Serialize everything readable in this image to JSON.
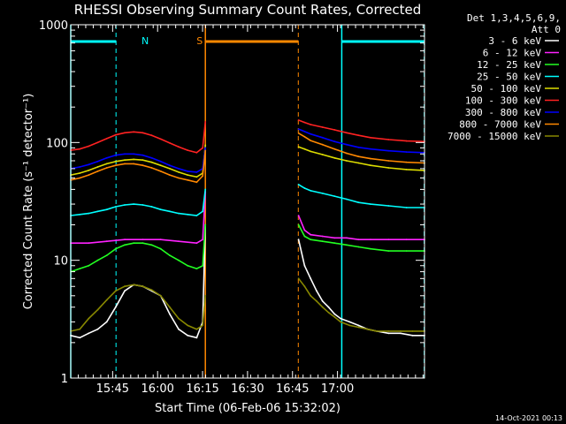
{
  "chart_data": {
    "type": "line",
    "title": "RHESSI Observing Summary Count Rates, Corrected",
    "xlabel": "Start Time (06-Feb-06 15:32:02)",
    "ylabel": "Corrected Count Rate (s⁻¹ detector⁻¹)",
    "yscale": "log",
    "ylim": [
      1,
      1000
    ],
    "xlim_min": [
      0,
      118
    ],
    "x_ticks": [
      {
        "v": 13.97,
        "label": "15:45"
      },
      {
        "v": 28.97,
        "label": "16:00"
      },
      {
        "v": 43.97,
        "label": "16:15"
      },
      {
        "v": 58.97,
        "label": "16:30"
      },
      {
        "v": 73.97,
        "label": "16:45"
      },
      {
        "v": 88.97,
        "label": "17:00"
      }
    ],
    "y_ticks": [
      {
        "v": 1,
        "label": "1"
      },
      {
        "v": 10,
        "label": "10"
      },
      {
        "v": 100,
        "label": "100"
      },
      {
        "v": 1000,
        "label": "1000"
      }
    ],
    "legend_header": [
      "Det 1,3,4,5,6,9,",
      "Att 0"
    ],
    "series": [
      {
        "name": "3 - 6 keV",
        "color": "#ffffff",
        "x": [
          0,
          3,
          6,
          9,
          12,
          15,
          18,
          21,
          24,
          27,
          30,
          33,
          36,
          39,
          42,
          44,
          44.9,
          76,
          78,
          80,
          82,
          84,
          86,
          88,
          90,
          93,
          96,
          99,
          102,
          106,
          110,
          114,
          118
        ],
        "y": [
          2.3,
          2.2,
          2.4,
          2.6,
          3.0,
          4.0,
          5.5,
          6.2,
          6.0,
          5.5,
          5.0,
          3.5,
          2.6,
          2.3,
          2.2,
          3.0,
          20,
          15,
          9,
          7,
          5.5,
          4.5,
          4.0,
          3.5,
          3.2,
          3.0,
          2.8,
          2.6,
          2.5,
          2.4,
          2.4,
          2.3,
          2.3
        ]
      },
      {
        "name": "6 - 12 keV",
        "color": "#ff22ff",
        "x": [
          0,
          6,
          12,
          18,
          24,
          30,
          36,
          42,
          44,
          44.9,
          76,
          78,
          80,
          84,
          88,
          92,
          96,
          100,
          106,
          112,
          118
        ],
        "y": [
          14,
          14,
          14.5,
          15,
          15,
          15,
          14.5,
          14,
          15,
          38,
          24,
          18,
          16.5,
          16,
          15.5,
          15.5,
          15,
          15,
          15,
          15,
          15
        ]
      },
      {
        "name": "12 - 25 keV",
        "color": "#22ff22",
        "x": [
          0,
          3,
          6,
          9,
          12,
          15,
          18,
          21,
          24,
          27,
          30,
          33,
          36,
          39,
          42,
          44,
          44.9,
          76,
          78,
          80,
          84,
          88,
          92,
          96,
          100,
          106,
          112,
          118
        ],
        "y": [
          8,
          8.5,
          9,
          10,
          11,
          12.5,
          13.5,
          14,
          14,
          13.5,
          12.5,
          11,
          10,
          9,
          8.5,
          9,
          20,
          20,
          16,
          15,
          14.5,
          14,
          13.5,
          13,
          12.5,
          12,
          12,
          12
        ]
      },
      {
        "name": "25 - 50 keV",
        "color": "#00ffff",
        "x": [
          0,
          3,
          6,
          9,
          12,
          15,
          18,
          21,
          24,
          27,
          30,
          33,
          36,
          39,
          42,
          44,
          44.9,
          76,
          78,
          80,
          84,
          88,
          92,
          96,
          100,
          106,
          112,
          118
        ],
        "y": [
          24,
          24.5,
          25,
          26,
          27,
          28.5,
          29.5,
          30,
          29.5,
          28.5,
          27,
          26,
          25,
          24.5,
          24,
          26,
          40,
          44,
          41,
          39,
          37,
          35,
          33,
          31,
          30,
          29,
          28,
          28
        ]
      },
      {
        "name": "50 - 100 keV",
        "color": "#dddd00",
        "x": [
          0,
          3,
          6,
          9,
          12,
          15,
          18,
          21,
          24,
          27,
          30,
          33,
          36,
          39,
          42,
          44,
          44.9,
          76,
          78,
          80,
          84,
          88,
          92,
          96,
          100,
          106,
          112,
          118
        ],
        "y": [
          53,
          55,
          58,
          62,
          66,
          69,
          71,
          72,
          71,
          68,
          64,
          60,
          56,
          53,
          51,
          55,
          95,
          92,
          88,
          84,
          79,
          74,
          70,
          67,
          64,
          61,
          59,
          58
        ]
      },
      {
        "name": "100 - 300 keV",
        "color": "#ff2222",
        "x": [
          0,
          3,
          6,
          9,
          12,
          15,
          18,
          21,
          24,
          27,
          30,
          33,
          36,
          39,
          42,
          44,
          44.9,
          76,
          78,
          80,
          84,
          88,
          92,
          96,
          100,
          106,
          112,
          118
        ],
        "y": [
          86,
          88,
          93,
          100,
          108,
          116,
          121,
          123,
          121,
          115,
          107,
          99,
          92,
          86,
          82,
          90,
          150,
          155,
          148,
          142,
          135,
          128,
          121,
          115,
          110,
          106,
          103,
          102
        ]
      },
      {
        "name": "300 - 800 keV",
        "color": "#0000ff",
        "x": [
          0,
          3,
          6,
          9,
          12,
          15,
          18,
          21,
          24,
          27,
          30,
          33,
          36,
          39,
          42,
          44,
          44.9,
          76,
          78,
          80,
          84,
          88,
          92,
          96,
          100,
          106,
          112,
          118
        ],
        "y": [
          60,
          62,
          65,
          69,
          74,
          78,
          80,
          80,
          78,
          74,
          69,
          64,
          60,
          57,
          56,
          60,
          90,
          130,
          124,
          118,
          110,
          102,
          96,
          91,
          88,
          85,
          83,
          82
        ]
      },
      {
        "name": "800 - 7000 keV",
        "color": "#ff8800",
        "x": [
          0,
          3,
          6,
          9,
          12,
          15,
          18,
          21,
          24,
          27,
          30,
          33,
          36,
          39,
          42,
          44,
          44.9,
          76,
          78,
          80,
          84,
          88,
          92,
          96,
          100,
          106,
          112,
          118
        ],
        "y": [
          48,
          50,
          53,
          57,
          61,
          64,
          66,
          66,
          64,
          61,
          57,
          53,
          50,
          48,
          46,
          52,
          85,
          120,
          112,
          104,
          96,
          88,
          81,
          76,
          73,
          70,
          68,
          67
        ]
      },
      {
        "name": "7000 - 15000 keV",
        "color": "#888800",
        "x": [
          0,
          3,
          6,
          9,
          12,
          15,
          18,
          21,
          24,
          27,
          30,
          33,
          36,
          39,
          42,
          44,
          44.9,
          76,
          78,
          80,
          82,
          84,
          86,
          88,
          90,
          93,
          96,
          99,
          102,
          106,
          110,
          114,
          118
        ],
        "y": [
          2.5,
          2.6,
          3.2,
          3.8,
          4.6,
          5.5,
          6.0,
          6.2,
          6.0,
          5.6,
          5.0,
          4.0,
          3.2,
          2.8,
          2.6,
          2.8,
          5,
          7,
          6,
          5,
          4.5,
          4.0,
          3.6,
          3.3,
          3.0,
          2.8,
          2.7,
          2.6,
          2.5,
          2.5,
          2.5,
          2.5,
          2.5
        ]
      }
    ],
    "markers": {
      "vlines_solid": [
        {
          "v": 0,
          "color": "#00ffff"
        },
        {
          "v": 44.9,
          "color": "#ff8800"
        },
        {
          "v": 90.4,
          "color": "#00ffff"
        }
      ],
      "vlines_dashed": [
        {
          "v": 15.1,
          "color": "#00ffff"
        },
        {
          "v": 75.9,
          "color": "#ff8800"
        },
        {
          "v": 117.9,
          "color": "#00ffff"
        }
      ],
      "bars": [
        {
          "label": "N",
          "color": "#00ffff",
          "x0": 0,
          "x1": 15.1
        },
        {
          "label": "S",
          "color": "#ff8800",
          "x0": 44.9,
          "x1": 75.9
        },
        {
          "label": "",
          "color": "#00ffff",
          "x0": 90.4,
          "x1": 117.9
        }
      ]
    }
  },
  "timestamp": "14-Oct-2021 00:13"
}
